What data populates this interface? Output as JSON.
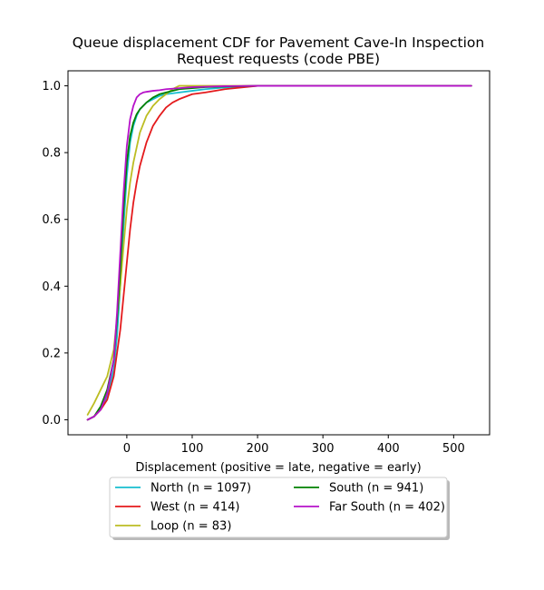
{
  "chart_data": {
    "type": "line",
    "title": "Queue displacement CDF for Pavement Cave-In Inspection\nRequest  requests (code PBE)",
    "xlabel": "Displacement (positive = late, negative = early)",
    "ylabel": "",
    "xlim": [
      -90,
      555
    ],
    "ylim": [
      -0.045,
      1.045
    ],
    "xticks": [
      0,
      100,
      200,
      300,
      400,
      500
    ],
    "yticks": [
      0.0,
      0.2,
      0.4,
      0.6,
      0.8,
      1.0
    ],
    "xtick_labels": [
      "0",
      "100",
      "200",
      "300",
      "400",
      "500"
    ],
    "ytick_labels": [
      "0.0",
      "0.2",
      "0.4",
      "0.6",
      "0.8",
      "1.0"
    ],
    "grid": false,
    "legend_placement": "below plot, two columns, shadowed box",
    "series": [
      {
        "name": "North (n = 1097)",
        "color": "#17becf",
        "x": [
          -60,
          -50,
          -40,
          -30,
          -20,
          -15,
          -10,
          -5,
          0,
          5,
          10,
          15,
          20,
          30,
          40,
          50,
          60,
          80,
          100,
          120,
          150,
          200,
          300,
          400,
          527
        ],
        "y": [
          0.0,
          0.01,
          0.03,
          0.07,
          0.15,
          0.25,
          0.4,
          0.58,
          0.73,
          0.83,
          0.88,
          0.91,
          0.93,
          0.95,
          0.96,
          0.97,
          0.975,
          0.98,
          0.985,
          0.99,
          0.995,
          1.0,
          1.0,
          1.0,
          1.0
        ]
      },
      {
        "name": "West (n = 414)",
        "color": "#e41a1c",
        "x": [
          -60,
          -50,
          -40,
          -30,
          -20,
          -10,
          -5,
          0,
          5,
          10,
          15,
          20,
          30,
          40,
          50,
          60,
          70,
          80,
          100,
          120,
          150,
          200,
          300,
          400,
          527
        ],
        "y": [
          0.0,
          0.01,
          0.03,
          0.06,
          0.13,
          0.27,
          0.37,
          0.47,
          0.57,
          0.65,
          0.71,
          0.76,
          0.83,
          0.88,
          0.91,
          0.935,
          0.95,
          0.96,
          0.975,
          0.98,
          0.99,
          1.0,
          1.0,
          1.0,
          1.0
        ]
      },
      {
        "name": "Loop (n = 83)",
        "color": "#bcbd22",
        "x": [
          -60,
          -50,
          -40,
          -30,
          -20,
          -10,
          -5,
          0,
          5,
          10,
          20,
          30,
          40,
          50,
          60,
          70,
          80,
          90,
          100,
          200,
          300,
          400,
          527
        ],
        "y": [
          0.015,
          0.05,
          0.09,
          0.13,
          0.21,
          0.4,
          0.52,
          0.63,
          0.71,
          0.77,
          0.86,
          0.91,
          0.94,
          0.96,
          0.975,
          0.99,
          1.0,
          1.0,
          1.0,
          1.0,
          1.0,
          1.0,
          1.0
        ]
      },
      {
        "name": "South (n = 941)",
        "color": "#008000",
        "x": [
          -60,
          -50,
          -40,
          -30,
          -20,
          -15,
          -10,
          -5,
          0,
          5,
          10,
          15,
          20,
          30,
          40,
          50,
          60,
          80,
          100,
          120,
          150,
          200,
          300,
          400,
          527
        ],
        "y": [
          0.0,
          0.01,
          0.04,
          0.09,
          0.18,
          0.3,
          0.45,
          0.63,
          0.77,
          0.85,
          0.89,
          0.915,
          0.93,
          0.95,
          0.965,
          0.975,
          0.98,
          0.99,
          0.993,
          0.996,
          0.998,
          1.0,
          1.0,
          1.0,
          1.0
        ]
      },
      {
        "name": "Far South (n = 402)",
        "color": "#b612c9",
        "x": [
          -60,
          -50,
          -40,
          -30,
          -20,
          -15,
          -10,
          -5,
          0,
          5,
          10,
          15,
          20,
          25,
          30,
          40,
          50,
          60,
          80,
          100,
          150,
          200,
          300,
          400,
          527
        ],
        "y": [
          0.0,
          0.01,
          0.03,
          0.08,
          0.18,
          0.32,
          0.5,
          0.68,
          0.82,
          0.9,
          0.94,
          0.965,
          0.975,
          0.98,
          0.982,
          0.985,
          0.987,
          0.99,
          0.993,
          0.996,
          0.999,
          1.0,
          1.0,
          1.0,
          1.0
        ]
      }
    ]
  }
}
